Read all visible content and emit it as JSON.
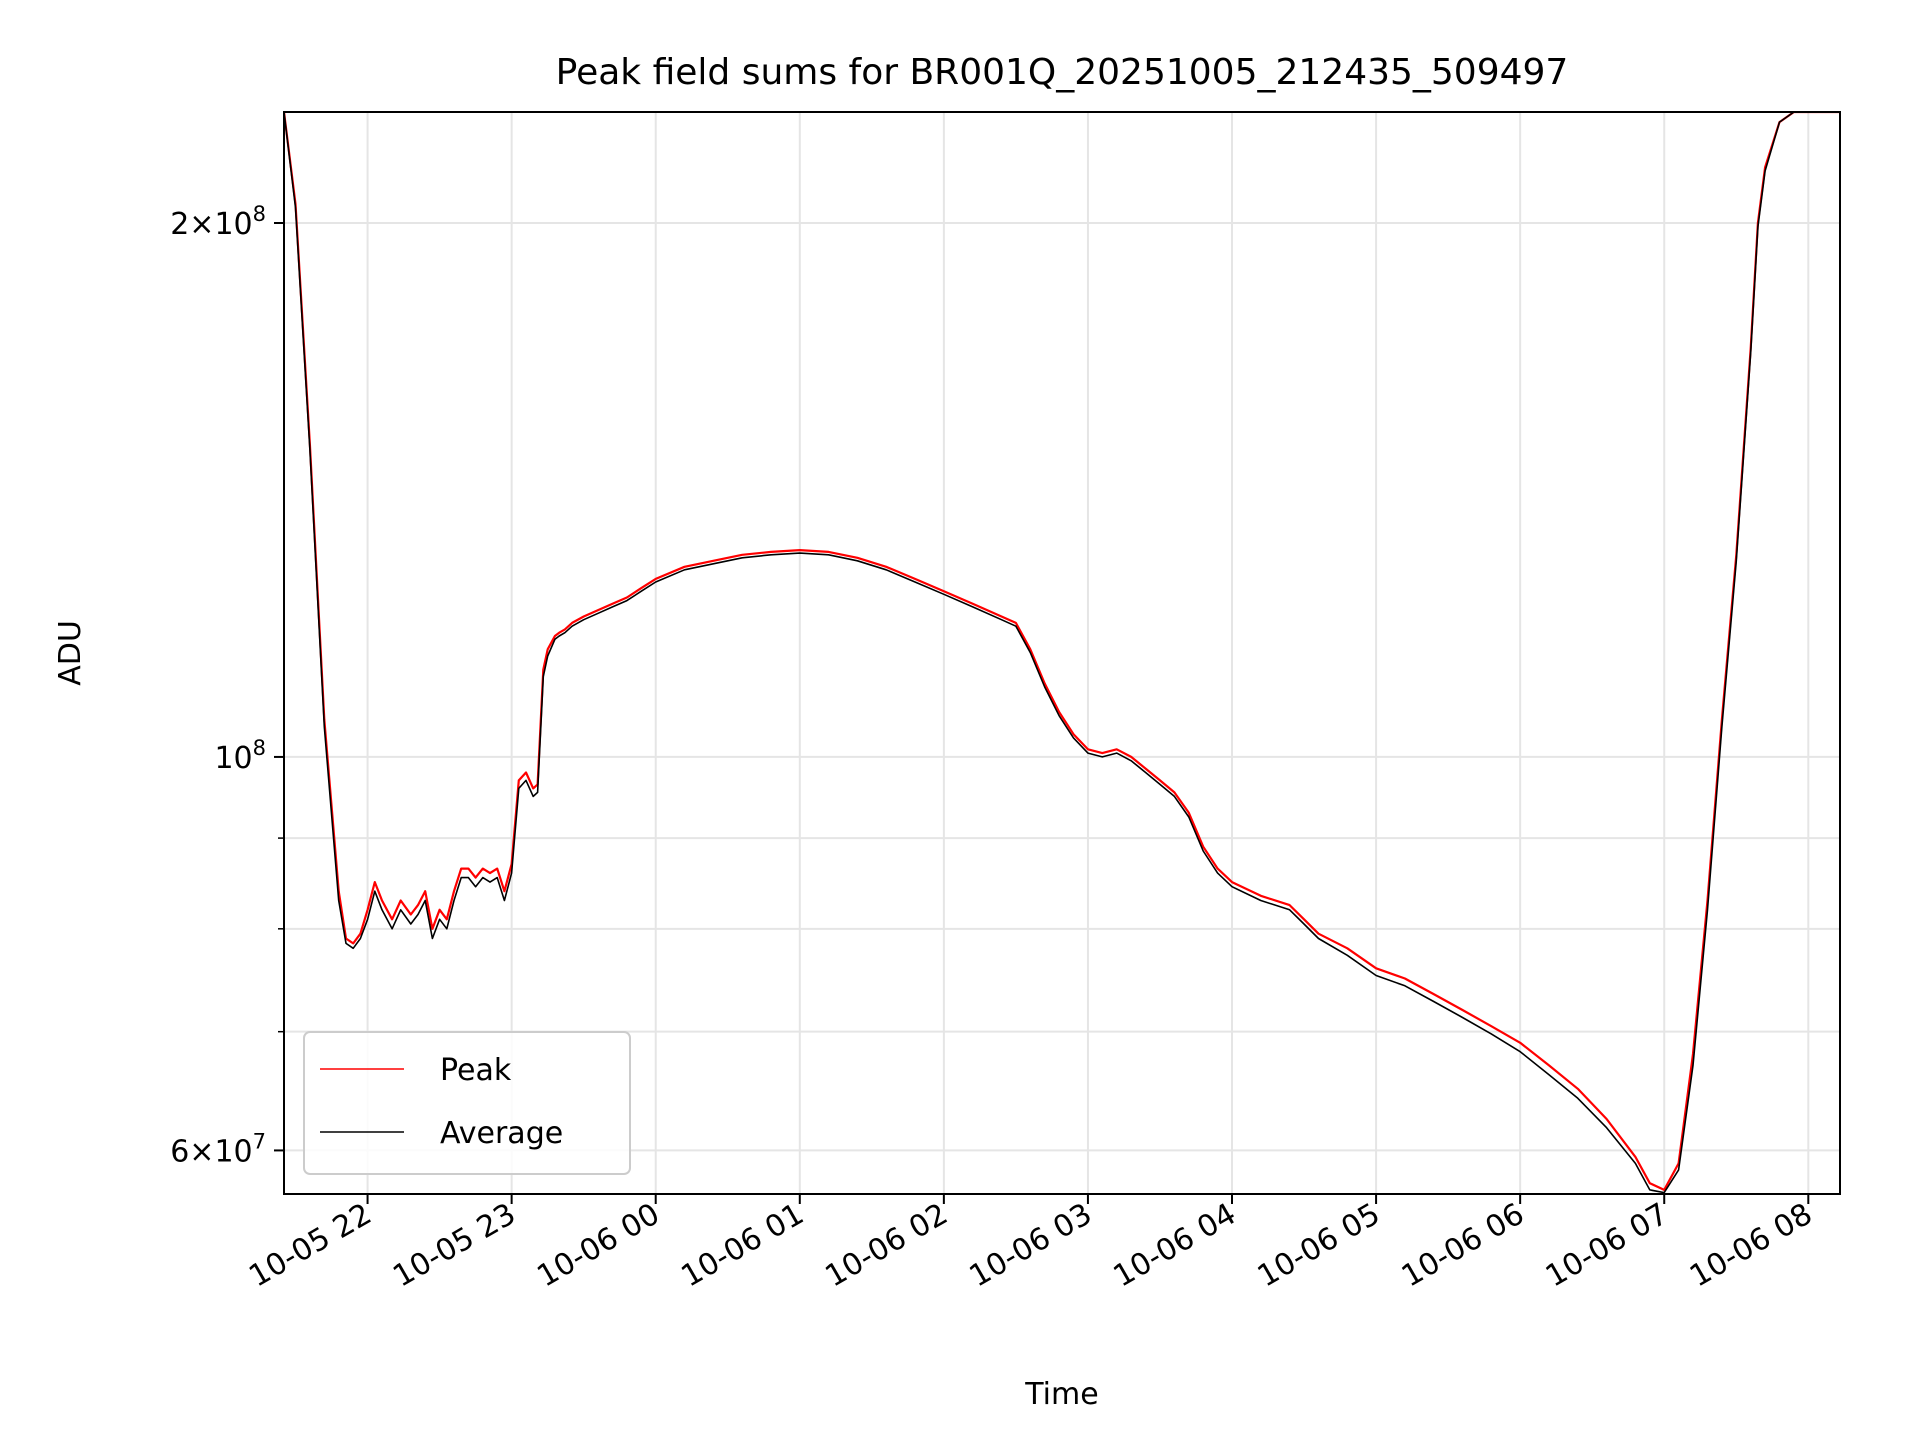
{
  "chart_data": {
    "type": "line",
    "title": "Peak field sums for BR001Q_20251005_212435_509497",
    "xlabel": "Time",
    "ylabel": "ADU",
    "yscale": "log",
    "ylim": [
      56700000,
      231000000
    ],
    "xlim_hours": [
      21.42,
      8.22
    ],
    "x_ticks": [
      "10-05 22",
      "10-05 23",
      "10-06 00",
      "10-06 01",
      "10-06 02",
      "10-06 03",
      "10-06 04",
      "10-06 05",
      "10-06 06",
      "10-06 07",
      "10-06 08"
    ],
    "y_major_ticks": [
      {
        "value": 200000000,
        "mantissa": "2",
        "exponent": "8"
      },
      {
        "value": 100000000,
        "mantissa": "",
        "exponent": "8"
      },
      {
        "value": 60000000,
        "mantissa": "6",
        "exponent": "7"
      }
    ],
    "y_minor_ticks": [
      70000000,
      80000000,
      90000000
    ],
    "grid": true,
    "legend_position": "lower-left",
    "series": [
      {
        "name": "Peak",
        "color": "#ff0000",
        "x_hours": [
          21.42,
          21.5,
          21.6,
          21.7,
          21.8,
          21.85,
          21.9,
          21.95,
          22.0,
          22.05,
          22.1,
          22.17,
          22.23,
          22.3,
          22.35,
          22.4,
          22.45,
          22.5,
          22.55,
          22.6,
          22.65,
          22.7,
          22.75,
          22.8,
          22.85,
          22.9,
          22.95,
          23.0,
          23.05,
          23.1,
          23.15,
          23.18,
          23.22,
          23.25,
          23.3,
          23.33,
          23.37,
          23.42,
          23.5,
          23.6,
          23.7,
          23.8,
          23.9,
          24.0,
          24.2,
          24.4,
          24.6,
          24.8,
          25.0,
          25.2,
          25.4,
          25.6,
          25.8,
          26.0,
          26.2,
          26.4,
          26.5,
          26.6,
          26.7,
          26.8,
          26.9,
          27.0,
          27.1,
          27.2,
          27.3,
          27.4,
          27.5,
          27.6,
          27.7,
          27.8,
          27.9,
          28.0,
          28.2,
          28.4,
          28.5,
          28.6,
          28.8,
          29.0,
          29.2,
          29.4,
          29.6,
          29.8,
          30.0,
          30.2,
          30.4,
          30.6,
          30.8,
          30.9,
          31.0,
          31.1,
          31.2,
          31.3,
          31.4,
          31.5,
          31.6,
          31.65,
          31.7,
          31.8,
          31.9,
          32.0,
          32.1,
          32.22
        ],
        "values": [
          231000000,
          205000000,
          150000000,
          105000000,
          84000000,
          79000000,
          78500000,
          79500000,
          82000000,
          85000000,
          83000000,
          81000000,
          83000000,
          81500000,
          82500000,
          84000000,
          80000000,
          82000000,
          81000000,
          84000000,
          86500000,
          86500000,
          85500000,
          86500000,
          86000000,
          86500000,
          84000000,
          87000000,
          97000000,
          98000000,
          96000000,
          96500000,
          112000000,
          115000000,
          117000000,
          117500000,
          118000000,
          119000000,
          120000000,
          121000000,
          122000000,
          123000000,
          124500000,
          126000000,
          128000000,
          129000000,
          130000000,
          130500000,
          130800000,
          130500000,
          129500000,
          128000000,
          126000000,
          124000000,
          122000000,
          120000000,
          119000000,
          115000000,
          110000000,
          106000000,
          103000000,
          101000000,
          100500000,
          101000000,
          100000000,
          98500000,
          97000000,
          95500000,
          93000000,
          89000000,
          86500000,
          85000000,
          83500000,
          82500000,
          81000000,
          79500000,
          78000000,
          76000000,
          75000000,
          73500000,
          72000000,
          70500000,
          69000000,
          67000000,
          65000000,
          62500000,
          59500000,
          57500000,
          57000000,
          59000000,
          68000000,
          83000000,
          105000000,
          130000000,
          170000000,
          200000000,
          215000000,
          228000000,
          231000000,
          231000000,
          231000000,
          231000000
        ]
      },
      {
        "name": "Average",
        "color": "#000000",
        "x_hours": [
          21.42,
          21.5,
          21.6,
          21.7,
          21.8,
          21.85,
          21.9,
          21.95,
          22.0,
          22.05,
          22.1,
          22.17,
          22.23,
          22.3,
          22.35,
          22.4,
          22.45,
          22.5,
          22.55,
          22.6,
          22.65,
          22.7,
          22.75,
          22.8,
          22.85,
          22.9,
          22.95,
          23.0,
          23.05,
          23.1,
          23.15,
          23.18,
          23.22,
          23.25,
          23.3,
          23.33,
          23.37,
          23.42,
          23.5,
          23.6,
          23.7,
          23.8,
          23.9,
          24.0,
          24.2,
          24.4,
          24.6,
          24.8,
          25.0,
          25.2,
          25.4,
          25.6,
          25.8,
          26.0,
          26.2,
          26.4,
          26.5,
          26.6,
          26.7,
          26.8,
          26.9,
          27.0,
          27.1,
          27.2,
          27.3,
          27.4,
          27.5,
          27.6,
          27.7,
          27.8,
          27.9,
          28.0,
          28.2,
          28.4,
          28.5,
          28.6,
          28.8,
          29.0,
          29.2,
          29.4,
          29.6,
          29.8,
          30.0,
          30.2,
          30.4,
          30.6,
          30.8,
          30.9,
          31.0,
          31.1,
          31.2,
          31.3,
          31.4,
          31.5,
          31.6,
          31.65,
          31.7,
          31.8,
          31.9,
          32.0,
          32.1,
          32.22
        ],
        "values": [
          231000000,
          204000000,
          149000000,
          104000000,
          83000000,
          78500000,
          78000000,
          79000000,
          81000000,
          84000000,
          82000000,
          80000000,
          82000000,
          80500000,
          81500000,
          83000000,
          79000000,
          81000000,
          80000000,
          83000000,
          85500000,
          85500000,
          84500000,
          85500000,
          85000000,
          85500000,
          83000000,
          86000000,
          96000000,
          97000000,
          95000000,
          95500000,
          111000000,
          114000000,
          116500000,
          117000000,
          117500000,
          118500000,
          119500000,
          120500000,
          121500000,
          122500000,
          124000000,
          125500000,
          127500000,
          128500000,
          129500000,
          130000000,
          130300000,
          130000000,
          129000000,
          127500000,
          125500000,
          123500000,
          121500000,
          119500000,
          118500000,
          114500000,
          109500000,
          105500000,
          102500000,
          100500000,
          100000000,
          100500000,
          99500000,
          98000000,
          96500000,
          95000000,
          92500000,
          88500000,
          86000000,
          84500000,
          83000000,
          82000000,
          80500000,
          79000000,
          77300000,
          75300000,
          74300000,
          72800000,
          71300000,
          69800000,
          68200000,
          66200000,
          64200000,
          61800000,
          59000000,
          57000000,
          56800000,
          58500000,
          67000000,
          82000000,
          104000000,
          129000000,
          169000000,
          199000000,
          214000000,
          228000000,
          231000000,
          231000000,
          231000000,
          231000000
        ]
      }
    ]
  }
}
